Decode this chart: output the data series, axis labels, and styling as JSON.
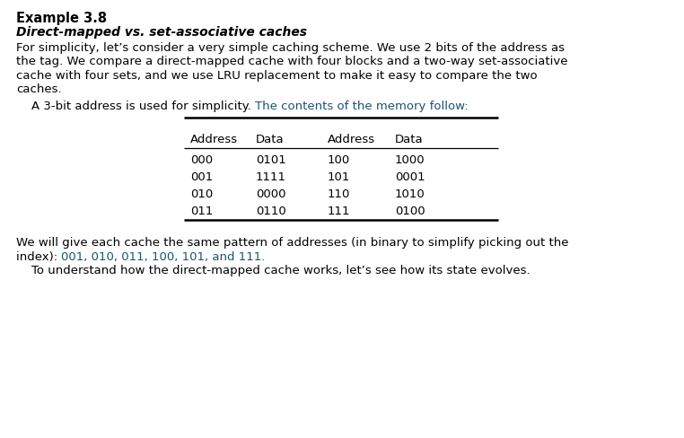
{
  "bg_color": "#ffffff",
  "title": "Example 3.8",
  "subtitle": "Direct-mapped vs. set-associative caches",
  "para1_line1": "For simplicity, let’s consider a very simple caching scheme. We use 2 bits of the address as",
  "para1_line2": "the tag. We compare a direct-mapped cache with four blocks and a two-way set-associative",
  "para1_line3": "cache with four sets, and we use LRU replacement to make it easy to compare the two",
  "para1_line4": "caches.",
  "para2_black": "    A 3-bit address is used for simplicity. ",
  "para2_blue": "The contents of the memory follow:",
  "table_headers": [
    "Address",
    "Data",
    "Address",
    "Data"
  ],
  "table_rows": [
    [
      "000",
      "0101",
      "100",
      "1000"
    ],
    [
      "001",
      "1111",
      "101",
      "0001"
    ],
    [
      "010",
      "0000",
      "110",
      "1010"
    ],
    [
      "011",
      "0110",
      "111",
      "0100"
    ]
  ],
  "para3_line1_black": "We will give each cache the same pattern of addresses (in binary to simplify picking out the",
  "para3_line2_black": "index): ",
  "para3_line2_blue": "001, 010, 011, 100, 101, and 111.",
  "para4": "    To understand how the direct-mapped cache works, let’s see how its state evolves.",
  "text_color": "#000000",
  "blue_color": "#1a5276",
  "title_fontsize": 10.5,
  "subtitle_fontsize": 10.0,
  "body_fontsize": 9.5,
  "table_fontsize": 9.5
}
